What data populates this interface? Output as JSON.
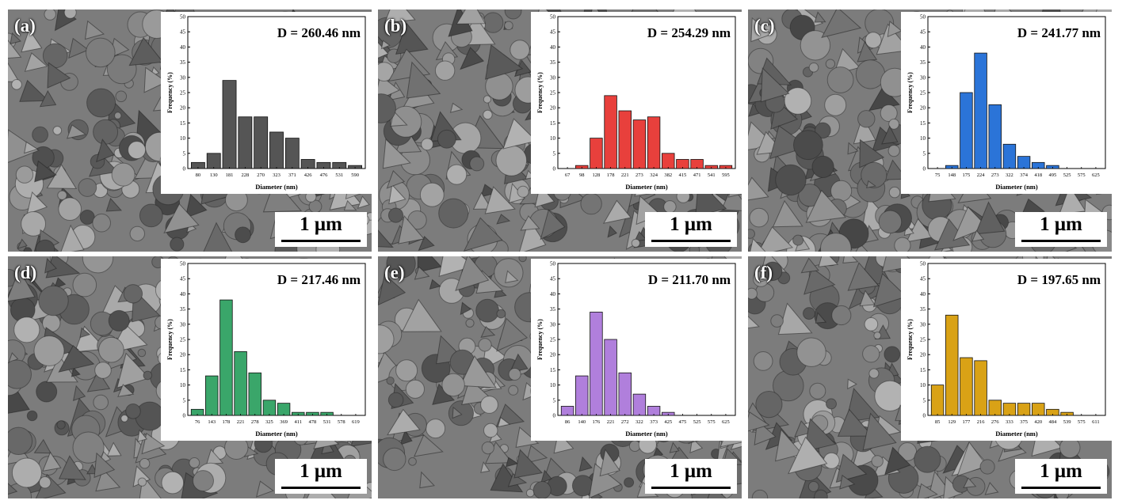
{
  "figure": {
    "panels": [
      {
        "label": "(a)",
        "d_text": "D = 260.46 nm",
        "scale_text": "1 μm",
        "color": "#555555"
      },
      {
        "label": "(b)",
        "d_text": "D = 254.29 nm",
        "scale_text": "1 μm",
        "color": "#e8403c"
      },
      {
        "label": "(c)",
        "d_text": "D = 241.77 nm",
        "scale_text": "1 μm",
        "color": "#2b74d8"
      },
      {
        "label": "(d)",
        "d_text": "D = 217.46 nm",
        "scale_text": "1 μm",
        "color": "#3aa66a"
      },
      {
        "label": "(e)",
        "d_text": "D = 211.70 nm",
        "scale_text": "1 μm",
        "color": "#b07fdc"
      },
      {
        "label": "(f)",
        "d_text": "D = 197.65 nm",
        "scale_text": "1 μm",
        "color": "#d9a216"
      }
    ]
  },
  "chart_data": [
    {
      "type": "bar",
      "xlabel": "Diameter (nm)",
      "ylabel": "Frequency (%)",
      "ylim": [
        0,
        50
      ],
      "yticks": [
        0,
        5,
        10,
        15,
        20,
        25,
        30,
        35,
        40,
        45,
        50
      ],
      "categories": [
        "80",
        "130",
        "181",
        "228",
        "270",
        "323",
        "371",
        "426",
        "476",
        "531",
        "590"
      ],
      "values": [
        2,
        5,
        29,
        17,
        17,
        12,
        10,
        3,
        2,
        2,
        1
      ]
    },
    {
      "type": "bar",
      "xlabel": "Diameter (nm)",
      "ylabel": "Frequency (%)",
      "ylim": [
        0,
        50
      ],
      "yticks": [
        0,
        5,
        10,
        15,
        20,
        25,
        30,
        35,
        40,
        45,
        50
      ],
      "categories": [
        "67",
        "98",
        "128",
        "178",
        "221",
        "273",
        "324",
        "382",
        "415",
        "471",
        "541",
        "595"
      ],
      "values": [
        0,
        1,
        10,
        24,
        19,
        16,
        17,
        5,
        3,
        3,
        1,
        1
      ]
    },
    {
      "type": "bar",
      "xlabel": "Diameter (nm)",
      "ylabel": "Frequency (%)",
      "ylim": [
        0,
        50
      ],
      "yticks": [
        0,
        5,
        10,
        15,
        20,
        25,
        30,
        35,
        40,
        45,
        50
      ],
      "categories": [
        "75",
        "148",
        "175",
        "224",
        "273",
        "322",
        "374",
        "418",
        "495",
        "525",
        "575",
        "625"
      ],
      "values": [
        0,
        1,
        25,
        38,
        21,
        8,
        4,
        2,
        1,
        0,
        0,
        0
      ]
    },
    {
      "type": "bar",
      "xlabel": "Diameter (nm)",
      "ylabel": "Frequency (%)",
      "ylim": [
        0,
        50
      ],
      "yticks": [
        0,
        5,
        10,
        15,
        20,
        25,
        30,
        35,
        40,
        45,
        50
      ],
      "categories": [
        "76",
        "143",
        "178",
        "221",
        "278",
        "325",
        "369",
        "411",
        "478",
        "531",
        "578",
        "619"
      ],
      "values": [
        2,
        13,
        38,
        21,
        14,
        5,
        4,
        1,
        1,
        1,
        0,
        0
      ]
    },
    {
      "type": "bar",
      "xlabel": "Diameter (nm)",
      "ylabel": "Frequency (%)",
      "ylim": [
        0,
        50
      ],
      "yticks": [
        0,
        5,
        10,
        15,
        20,
        25,
        30,
        35,
        40,
        45,
        50
      ],
      "categories": [
        "86",
        "140",
        "176",
        "221",
        "272",
        "322",
        "373",
        "425",
        "475",
        "525",
        "575",
        "625"
      ],
      "values": [
        3,
        13,
        34,
        25,
        14,
        7,
        3,
        1,
        0,
        0,
        0,
        0
      ]
    },
    {
      "type": "bar",
      "xlabel": "Diameter (nm)",
      "ylabel": "Frequency (%)",
      "ylim": [
        0,
        50
      ],
      "yticks": [
        0,
        5,
        10,
        15,
        20,
        25,
        30,
        35,
        40,
        45,
        50
      ],
      "categories": [
        "85",
        "129",
        "177",
        "216",
        "276",
        "333",
        "375",
        "420",
        "484",
        "539",
        "575",
        "611"
      ],
      "values": [
        10,
        33,
        19,
        18,
        5,
        4,
        4,
        4,
        2,
        1,
        0,
        0
      ]
    }
  ]
}
